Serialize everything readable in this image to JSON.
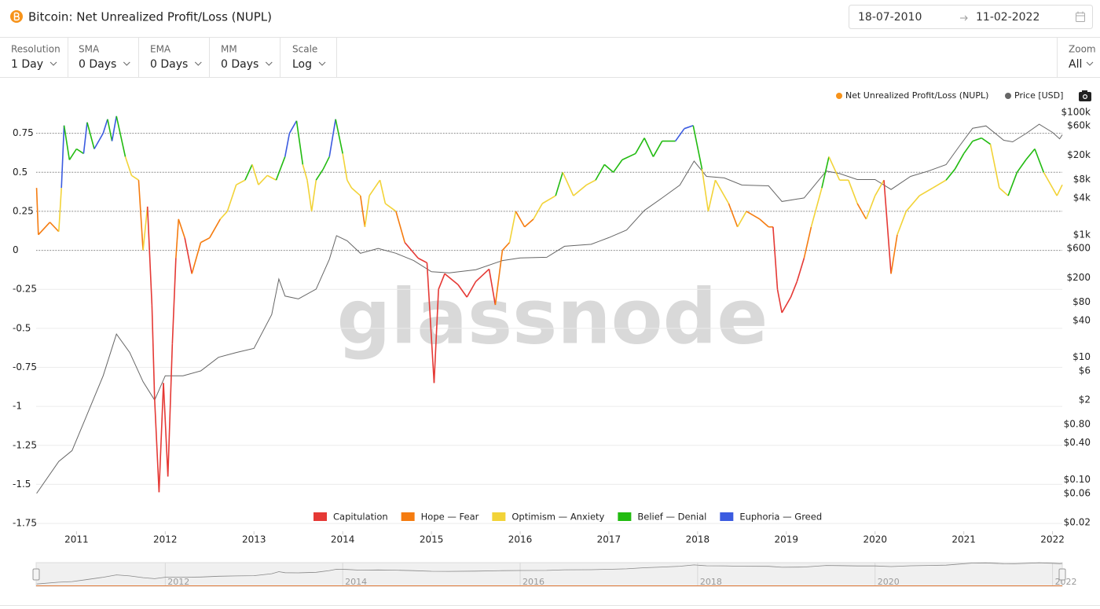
{
  "header": {
    "title": "Bitcoin: Net Unrealized Profit/Loss (NUPL)",
    "date_from": "18-07-2010",
    "date_to": "11-02-2022"
  },
  "controls": [
    {
      "label": "Resolution",
      "value": "1 Day"
    },
    {
      "label": "SMA",
      "value": "0 Days"
    },
    {
      "label": "EMA",
      "value": "0 Days"
    },
    {
      "label": "MM",
      "value": "0 Days"
    },
    {
      "label": "Scale",
      "value": "Log"
    }
  ],
  "zoom": {
    "label": "Zoom",
    "value": "All"
  },
  "watermark": "glassnode",
  "navigator": {
    "xticks": [
      2012,
      2014,
      2016,
      2018,
      2020,
      2022
    ]
  },
  "chart_data": {
    "type": "line",
    "xlim": [
      2010.545,
      2022.11
    ],
    "xticks": [
      2011,
      2012,
      2013,
      2014,
      2015,
      2016,
      2017,
      2018,
      2019,
      2020,
      2021,
      2022
    ],
    "ylim": [
      -1.8,
      1.0
    ],
    "yticks": [
      0.75,
      0.5,
      0.25,
      0,
      -0.25,
      -0.5,
      -0.75,
      -1,
      -1.25,
      -1.5,
      -1.75
    ],
    "y2lim": [
      0.0145,
      197000
    ],
    "y2log": true,
    "y2ticks": [
      {
        "value": 100000,
        "label": "$100k"
      },
      {
        "value": 60000,
        "label": "$60k"
      },
      {
        "value": 20000,
        "label": "$20k"
      },
      {
        "value": 8000,
        "label": "$8k"
      },
      {
        "value": 4000,
        "label": "$4k"
      },
      {
        "value": 1000,
        "label": "$1k"
      },
      {
        "value": 600,
        "label": "$600"
      },
      {
        "value": 200,
        "label": "$200"
      },
      {
        "value": 80,
        "label": "$80"
      },
      {
        "value": 40,
        "label": "$40"
      },
      {
        "value": 10,
        "label": "$10"
      },
      {
        "value": 6,
        "label": "$6"
      },
      {
        "value": 2,
        "label": "$2"
      },
      {
        "value": 0.8,
        "label": "$0.80"
      },
      {
        "value": 0.4,
        "label": "$0.40"
      },
      {
        "value": 0.1,
        "label": "$0.10"
      },
      {
        "value": 0.06,
        "label": "$0.06"
      },
      {
        "value": 0.02,
        "label": "$0.02"
      }
    ],
    "grid": true,
    "zones": [
      {
        "name": "Capitulation",
        "color": "#e53935",
        "max": 0
      },
      {
        "name": "Hope — Fear",
        "color": "#f57c10",
        "max": 0.25
      },
      {
        "name": "Optimism — Anxiety",
        "color": "#f2d338",
        "max": 0.5
      },
      {
        "name": "Belief — Denial",
        "color": "#22bb11",
        "max": 0.75
      },
      {
        "name": "Euphoria — Greed",
        "color": "#3b5be0"
      }
    ],
    "series": [
      {
        "name": "Net Unrealized Profit/Loss (NUPL)",
        "color": "#f7931a",
        "x": [
          2010.55,
          2010.57,
          2010.7,
          2010.8,
          2010.83,
          2010.86,
          2010.92,
          2011.0,
          2011.08,
          2011.12,
          2011.2,
          2011.3,
          2011.35,
          2011.4,
          2011.45,
          2011.55,
          2011.62,
          2011.7,
          2011.75,
          2011.8,
          2011.85,
          2011.88,
          2011.93,
          2011.98,
          2012.03,
          2012.08,
          2012.12,
          2012.15,
          2012.22,
          2012.3,
          2012.4,
          2012.5,
          2012.62,
          2012.7,
          2012.8,
          2012.9,
          2012.98,
          2013.05,
          2013.15,
          2013.25,
          2013.35,
          2013.4,
          2013.48,
          2013.55,
          2013.6,
          2013.65,
          2013.7,
          2013.78,
          2013.85,
          2013.92,
          2014.0,
          2014.05,
          2014.1,
          2014.2,
          2014.25,
          2014.3,
          2014.42,
          2014.48,
          2014.6,
          2014.7,
          2014.85,
          2014.95,
          2015.03,
          2015.08,
          2015.15,
          2015.3,
          2015.4,
          2015.5,
          2015.65,
          2015.72,
          2015.8,
          2015.88,
          2015.95,
          2016.05,
          2016.15,
          2016.25,
          2016.4,
          2016.48,
          2016.6,
          2016.75,
          2016.85,
          2016.95,
          2017.05,
          2017.15,
          2017.3,
          2017.4,
          2017.5,
          2017.6,
          2017.75,
          2017.85,
          2017.95,
          2018.05,
          2018.12,
          2018.2,
          2018.35,
          2018.45,
          2018.55,
          2018.7,
          2018.8,
          2018.85,
          2018.9,
          2018.95,
          2019.05,
          2019.12,
          2019.2,
          2019.28,
          2019.4,
          2019.48,
          2019.6,
          2019.7,
          2019.8,
          2019.9,
          2020.0,
          2020.1,
          2020.18,
          2020.25,
          2020.35,
          2020.5,
          2020.65,
          2020.8,
          2020.9,
          2021.0,
          2021.1,
          2021.2,
          2021.3,
          2021.4,
          2021.5,
          2021.6,
          2021.7,
          2021.8,
          2021.9,
          2022.0,
          2022.05,
          2022.11
        ],
        "values": [
          0.4,
          0.1,
          0.18,
          0.12,
          0.4,
          0.8,
          0.58,
          0.65,
          0.62,
          0.82,
          0.65,
          0.75,
          0.84,
          0.7,
          0.86,
          0.6,
          0.48,
          0.45,
          0,
          0.28,
          -0.35,
          -0.95,
          -1.55,
          -0.85,
          -1.45,
          -0.6,
          -0.05,
          0.2,
          0.08,
          -0.15,
          0.05,
          0.08,
          0.2,
          0.25,
          0.42,
          0.45,
          0.55,
          0.42,
          0.48,
          0.45,
          0.6,
          0.75,
          0.83,
          0.55,
          0.45,
          0.25,
          0.45,
          0.52,
          0.6,
          0.84,
          0.62,
          0.45,
          0.4,
          0.35,
          0.15,
          0.35,
          0.45,
          0.3,
          0.25,
          0.05,
          -0.05,
          -0.08,
          -0.85,
          -0.25,
          -0.15,
          -0.22,
          -0.3,
          -0.2,
          -0.12,
          -0.35,
          0,
          0.05,
          0.25,
          0.15,
          0.2,
          0.3,
          0.35,
          0.5,
          0.35,
          0.42,
          0.45,
          0.55,
          0.5,
          0.58,
          0.62,
          0.72,
          0.6,
          0.7,
          0.7,
          0.78,
          0.8,
          0.52,
          0.25,
          0.45,
          0.3,
          0.15,
          0.25,
          0.2,
          0.15,
          0.15,
          -0.25,
          -0.4,
          -0.3,
          -0.2,
          -0.05,
          0.15,
          0.4,
          0.6,
          0.45,
          0.45,
          0.3,
          0.2,
          0.35,
          0.45,
          -0.15,
          0.1,
          0.25,
          0.35,
          0.4,
          0.45,
          0.52,
          0.62,
          0.7,
          0.72,
          0.68,
          0.4,
          0.35,
          0.5,
          0.58,
          0.65,
          0.5,
          0.4,
          0.35,
          0.42
        ]
      },
      {
        "name": "Price [USD]",
        "color": "#666666",
        "axis": "y2",
        "x": [
          2010.55,
          2010.8,
          2010.95,
          2011.1,
          2011.3,
          2011.45,
          2011.6,
          2011.75,
          2011.88,
          2012.0,
          2012.2,
          2012.4,
          2012.6,
          2012.8,
          2013.0,
          2013.2,
          2013.28,
          2013.35,
          2013.5,
          2013.7,
          2013.85,
          2013.93,
          2014.05,
          2014.2,
          2014.4,
          2014.6,
          2014.8,
          2015.0,
          2015.2,
          2015.5,
          2015.8,
          2016.0,
          2016.3,
          2016.5,
          2016.8,
          2017.0,
          2017.2,
          2017.4,
          2017.6,
          2017.8,
          2017.96,
          2018.1,
          2018.3,
          2018.5,
          2018.8,
          2018.95,
          2019.2,
          2019.45,
          2019.6,
          2019.8,
          2020.0,
          2020.18,
          2020.4,
          2020.6,
          2020.8,
          2020.95,
          2021.1,
          2021.25,
          2021.45,
          2021.55,
          2021.7,
          2021.85,
          2022.0,
          2022.08,
          2022.11
        ],
        "values": [
          0.06,
          0.2,
          0.3,
          1,
          5,
          24,
          12,
          4,
          2,
          5,
          5,
          6,
          10,
          12,
          14,
          50,
          190,
          100,
          90,
          130,
          400,
          970,
          800,
          500,
          600,
          500,
          380,
          250,
          240,
          270,
          380,
          420,
          430,
          650,
          700,
          900,
          1200,
          2500,
          4000,
          6500,
          16000,
          9000,
          8500,
          6500,
          6300,
          3500,
          4000,
          11000,
          10000,
          8000,
          8000,
          5500,
          9000,
          11000,
          14000,
          28000,
          55000,
          60000,
          35000,
          33000,
          45000,
          64000,
          47000,
          37000,
          43000
        ]
      }
    ]
  }
}
